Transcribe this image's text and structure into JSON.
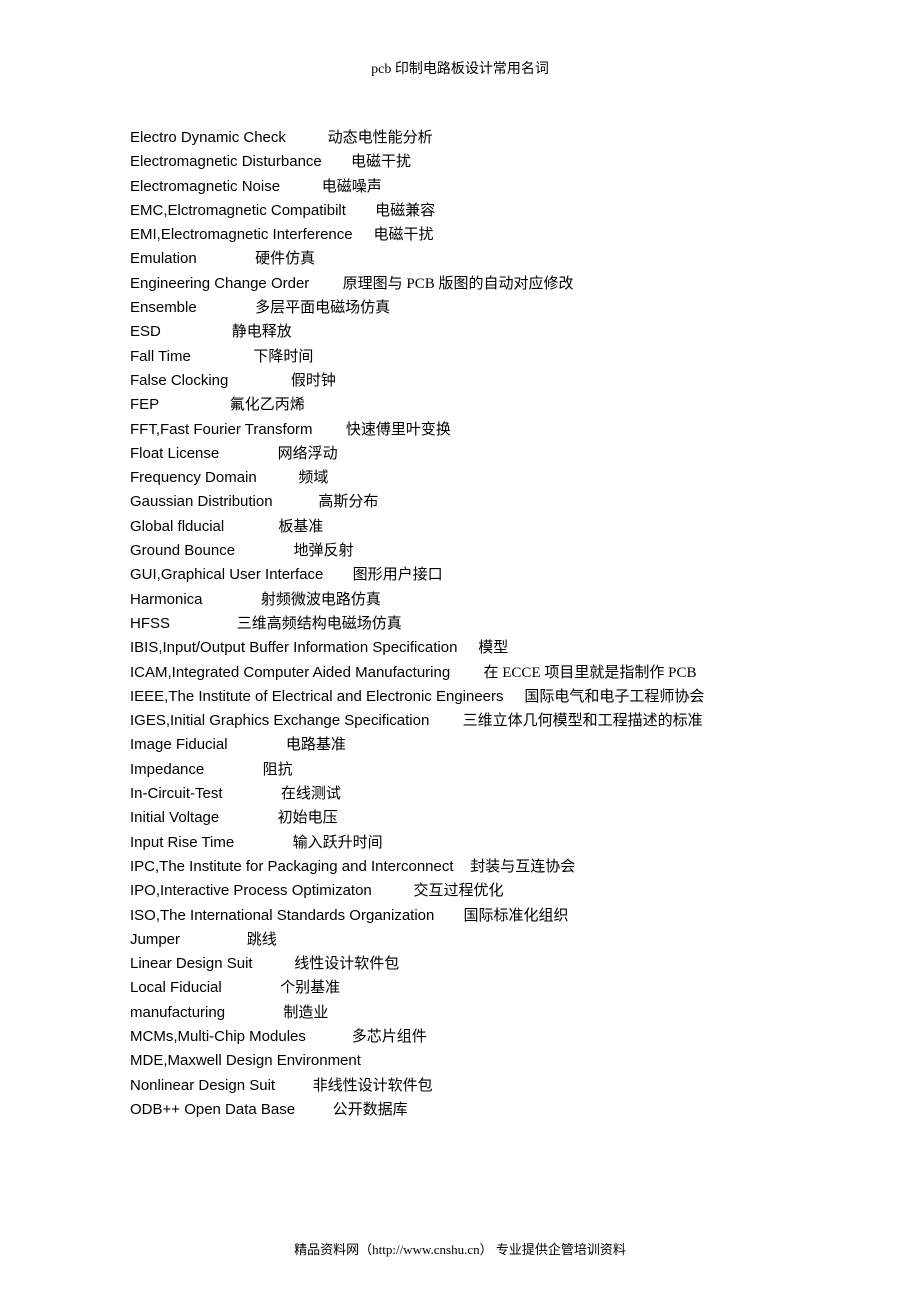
{
  "header": "pcb 印制电路板设计常用名词",
  "footer": "精品资料网（http://www.cnshu.cn） 专业提供企管培训资料",
  "entries": [
    {
      "en": "Electro Dynamic Check",
      "gap": "          ",
      "cn": "动态电性能分析"
    },
    {
      "en": "Electromagnetic Disturbance",
      "gap": "       ",
      "cn": "电磁干扰"
    },
    {
      "en": "Electromagnetic Noise",
      "gap": "          ",
      "cn": "电磁噪声"
    },
    {
      "en": "EMC,Elctromagnetic Compatibilt",
      "gap": "       ",
      "cn": "电磁兼容"
    },
    {
      "en": "EMI,Electromagnetic Interference",
      "gap": "     ",
      "cn": "电磁干扰"
    },
    {
      "en": "Emulation",
      "gap": "              ",
      "cn": "硬件仿真"
    },
    {
      "en": "Engineering Change Order",
      "gap": "        ",
      "cn": "原理图与 PCB 版图的自动对应修改"
    },
    {
      "en": "Ensemble",
      "gap": "              ",
      "cn": "多层平面电磁场仿真"
    },
    {
      "en": "ESD",
      "gap": "                 ",
      "cn": "静电释放"
    },
    {
      "en": "Fall Time",
      "gap": "               ",
      "cn": "下降时间"
    },
    {
      "en": "False Clocking",
      "gap": "               ",
      "cn": "假时钟"
    },
    {
      "en": "FEP",
      "gap": "                 ",
      "cn": "氟化乙丙烯"
    },
    {
      "en": "FFT,Fast Fourier Transform",
      "gap": "        ",
      "cn": "快速傅里叶变换"
    },
    {
      "en": "Float License",
      "gap": "              ",
      "cn": "网络浮动"
    },
    {
      "en": "Frequency Domain",
      "gap": "          ",
      "cn": "频域"
    },
    {
      "en": "Gaussian Distribution",
      "gap": "           ",
      "cn": "高斯分布"
    },
    {
      "en": "Global flducial",
      "gap": "             ",
      "cn": "板基准"
    },
    {
      "en": "Ground Bounce",
      "gap": "              ",
      "cn": "地弹反射"
    },
    {
      "en": "GUI,Graphical User Interface",
      "gap": "       ",
      "cn": "图形用户接口"
    },
    {
      "en": "Harmonica",
      "gap": "              ",
      "cn": "射频微波电路仿真"
    },
    {
      "en": "HFSS",
      "gap": "                ",
      "cn": "三维高频结构电磁场仿真"
    },
    {
      "en": "IBIS,Input/Output Buffer Information Specification",
      "gap": "     ",
      "cn": "模型"
    },
    {
      "en": "ICAM,Integrated Computer Aided Manufacturing",
      "gap": "        ",
      "cn": "在 ECCE 项目里就是指制作 PCB"
    },
    {
      "en": "IEEE,The Institute of Electrical and Electronic Engineers",
      "gap": "     ",
      "cn": "国际电气和电子工程师协会"
    },
    {
      "en": "IGES,Initial Graphics Exchange Specification",
      "gap": "        ",
      "cn": "三维立体几何模型和工程描述的标准"
    },
    {
      "en": "Image Fiducial",
      "gap": "              ",
      "cn": "电路基准"
    },
    {
      "en": "Impedance",
      "gap": "              ",
      "cn": "阻抗"
    },
    {
      "en": "In-Circuit-Test",
      "gap": "              ",
      "cn": "在线测试"
    },
    {
      "en": "Initial Voltage",
      "gap": "              ",
      "cn": "初始电压"
    },
    {
      "en": "Input Rise Time",
      "gap": "              ",
      "cn": "输入跃升时间"
    },
    {
      "en": "IPC,The Institute for Packaging and Interconnect",
      "gap": "    ",
      "cn": "封装与互连协会"
    },
    {
      "en": "IPO,Interactive Process Optimizaton",
      "gap": "          ",
      "cn": "交互过程优化"
    },
    {
      "en": "ISO,The International Standards Organization",
      "gap": "       ",
      "cn": "国际标准化组织"
    },
    {
      "en": "Jumper",
      "gap": "                ",
      "cn": "跳线"
    },
    {
      "en": "Linear Design Suit",
      "gap": "          ",
      "cn": "线性设计软件包"
    },
    {
      "en": "Local Fiducial",
      "gap": "              ",
      "cn": "个别基准"
    },
    {
      "en": "manufacturing",
      "gap": "              ",
      "cn": "制造业"
    },
    {
      "en": "MCMs,Multi-Chip Modules",
      "gap": "           ",
      "cn": "多芯片组件"
    },
    {
      "en": "MDE,Maxwell Design Environment",
      "gap": "",
      "cn": ""
    },
    {
      "en": "Nonlinear Design Suit",
      "gap": "         ",
      "cn": "非线性设计软件包"
    },
    {
      "en": "ODB++ Open Data Base",
      "gap": "         ",
      "cn": "公开数据库"
    }
  ]
}
